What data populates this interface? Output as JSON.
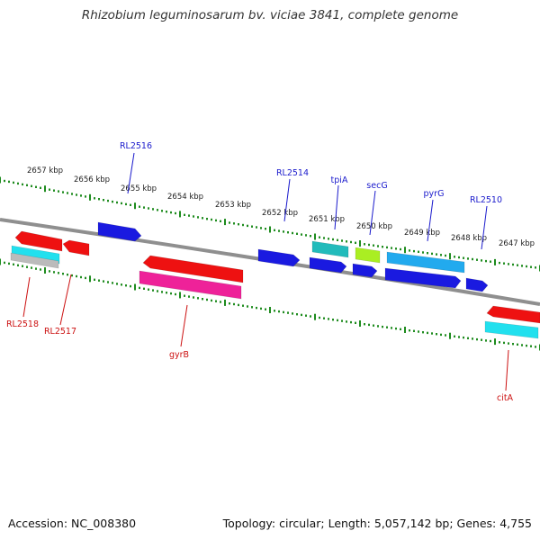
{
  "title": "Rhizobium leguminosarum bv. viciae 3841, complete genome",
  "footer": {
    "accession": "Accession: NC_008380",
    "summary": "Topology: circular; Length: 5,057,142 bp; Genes: 4,755"
  },
  "colors": {
    "backbone": "#8f8f8f",
    "tick": "#1f8c1f",
    "forward_label": "#1a1acc",
    "reverse_label": "#cc1111",
    "red": "#ee1111",
    "blue": "#1a1ae0",
    "cyan": "#22e0ee",
    "teal": "#22bbbb",
    "lightblue": "#22aaee",
    "lime": "#aaee22",
    "magenta": "#ee2299",
    "gray": "#bbbbbb"
  },
  "scale": {
    "labels": [
      "2657 kbp",
      "2656 kbp",
      "2655 kbp",
      "2654 kbp",
      "2653 kbp",
      "2652 kbp",
      "2651 kbp",
      "2650 kbp",
      "2649 kbp",
      "2648 kbp",
      "2647 kbp"
    ]
  },
  "genes": {
    "forward": [
      {
        "name": "RL2516",
        "color": "blue"
      },
      {
        "name": "RL2514",
        "color": "blue"
      },
      {
        "name": "tpiA",
        "color": "teal"
      },
      {
        "name": "secG",
        "color": "lime"
      },
      {
        "name": "pyrG",
        "color": "lightblue"
      },
      {
        "name": "RL2510",
        "color": "blue"
      }
    ],
    "reverse": [
      {
        "name": "RL2518",
        "color": "red"
      },
      {
        "name": "RL2517",
        "color": "red"
      },
      {
        "name": "gyrB",
        "color": "red"
      },
      {
        "name": "citA",
        "color": "red"
      }
    ]
  }
}
